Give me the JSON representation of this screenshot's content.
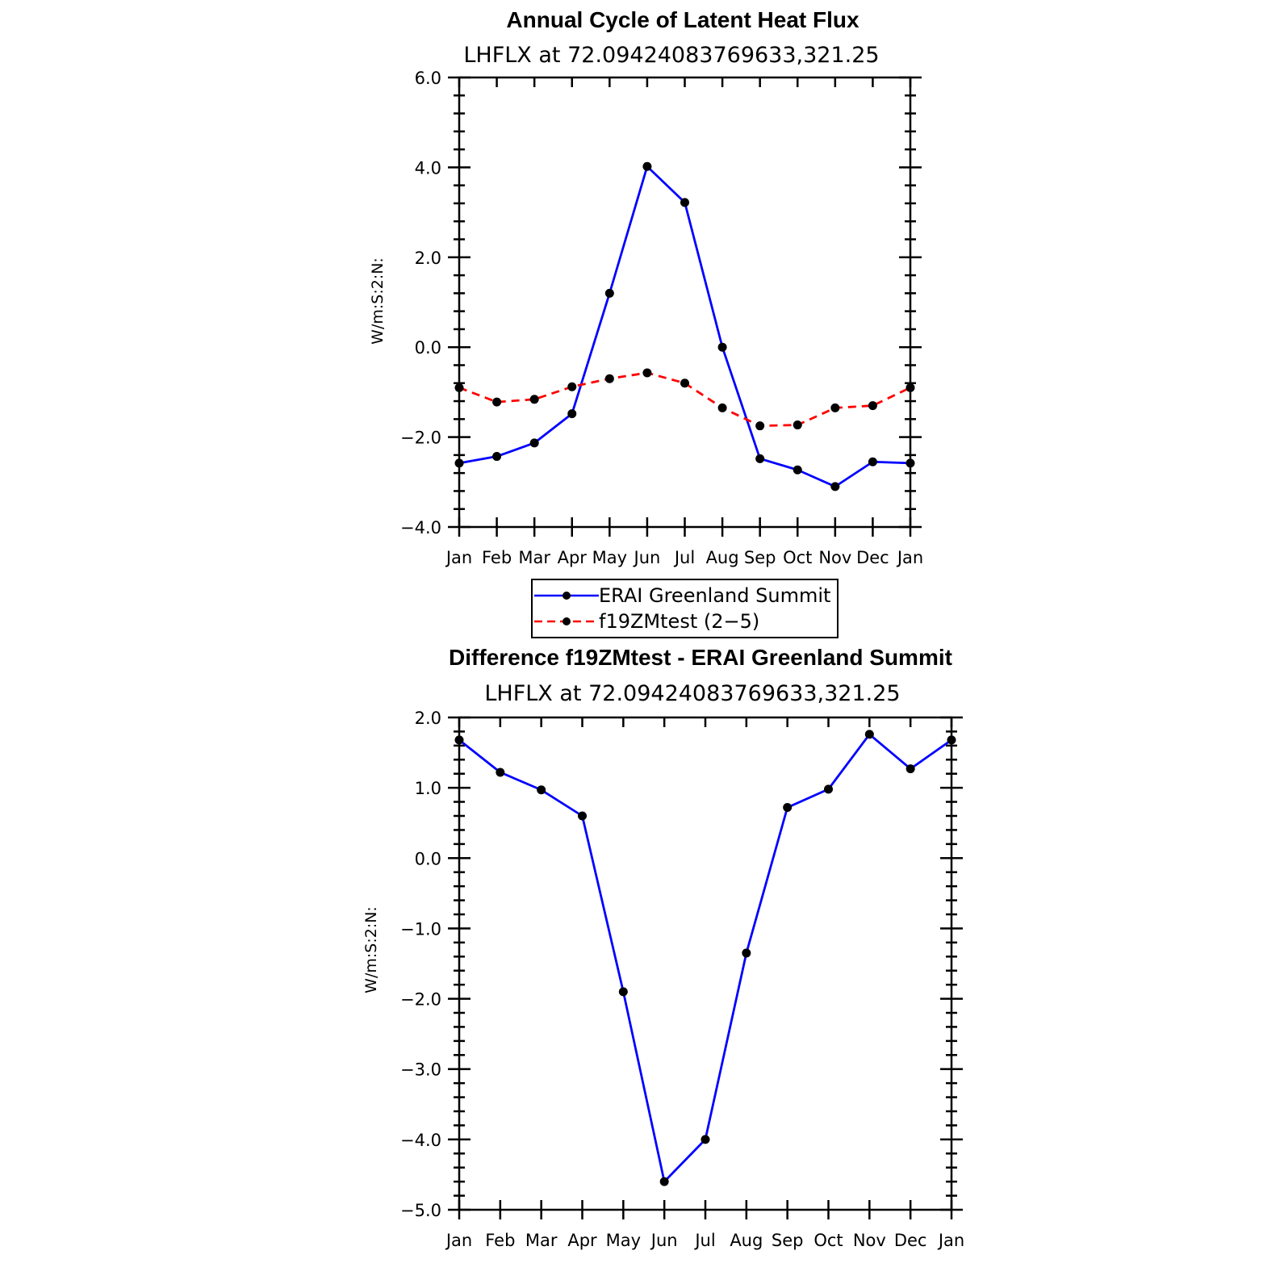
{
  "chart_data": [
    {
      "type": "line",
      "title": "Annual Cycle of Latent Heat Flux",
      "subtitle": "LHFLX at 72.09424083769633,321.25",
      "ylabel": "W/m:S:2:N:",
      "ylim": [
        -4.0,
        6.0
      ],
      "yticks": [
        "−4.0",
        "−2.0",
        "0.0",
        "2.0",
        "4.0",
        "6.0"
      ],
      "ytick_values": [
        -4,
        -2,
        0,
        2,
        4,
        6
      ],
      "x": [
        "Jan",
        "Feb",
        "Mar",
        "Apr",
        "May",
        "Jun",
        "Jul",
        "Aug",
        "Sep",
        "Oct",
        "Nov",
        "Dec",
        "Jan"
      ],
      "series": [
        {
          "name": "ERAI Greenland Summit",
          "color": "#0000ff",
          "style": "solid",
          "values": [
            -2.58,
            -2.43,
            -2.13,
            -1.48,
            1.2,
            4.02,
            3.22,
            0.0,
            -2.48,
            -2.73,
            -3.1,
            -2.55,
            -2.58
          ]
        },
        {
          "name": "f19ZMtest (2−5)",
          "color": "#ff0000",
          "style": "dashed",
          "values": [
            -0.9,
            -1.22,
            -1.16,
            -0.88,
            -0.7,
            -0.57,
            -0.8,
            -1.35,
            -1.75,
            -1.73,
            -1.35,
            -1.3,
            -0.9
          ]
        }
      ],
      "legend": "below"
    },
    {
      "type": "line",
      "title": "Difference f19ZMtest - ERAI Greenland Summit",
      "subtitle": "LHFLX at 72.09424083769633,321.25",
      "ylabel": "W/m:S:2:N:",
      "ylim": [
        -5.0,
        2.0
      ],
      "yticks": [
        "−5.0",
        "−4.0",
        "−3.0",
        "−2.0",
        "−1.0",
        "0.0",
        "1.0",
        "2.0"
      ],
      "ytick_values": [
        -5,
        -4,
        -3,
        -2,
        -1,
        0,
        1,
        2
      ],
      "x": [
        "Jan",
        "Feb",
        "Mar",
        "Apr",
        "May",
        "Jun",
        "Jul",
        "Aug",
        "Sep",
        "Oct",
        "Nov",
        "Dec",
        "Jan"
      ],
      "series": [
        {
          "color": "#0000ff",
          "style": "solid",
          "values": [
            1.68,
            1.22,
            0.97,
            0.6,
            -1.9,
            -4.6,
            -4.0,
            -1.35,
            0.72,
            0.98,
            1.76,
            1.27,
            1.68
          ]
        }
      ]
    }
  ]
}
